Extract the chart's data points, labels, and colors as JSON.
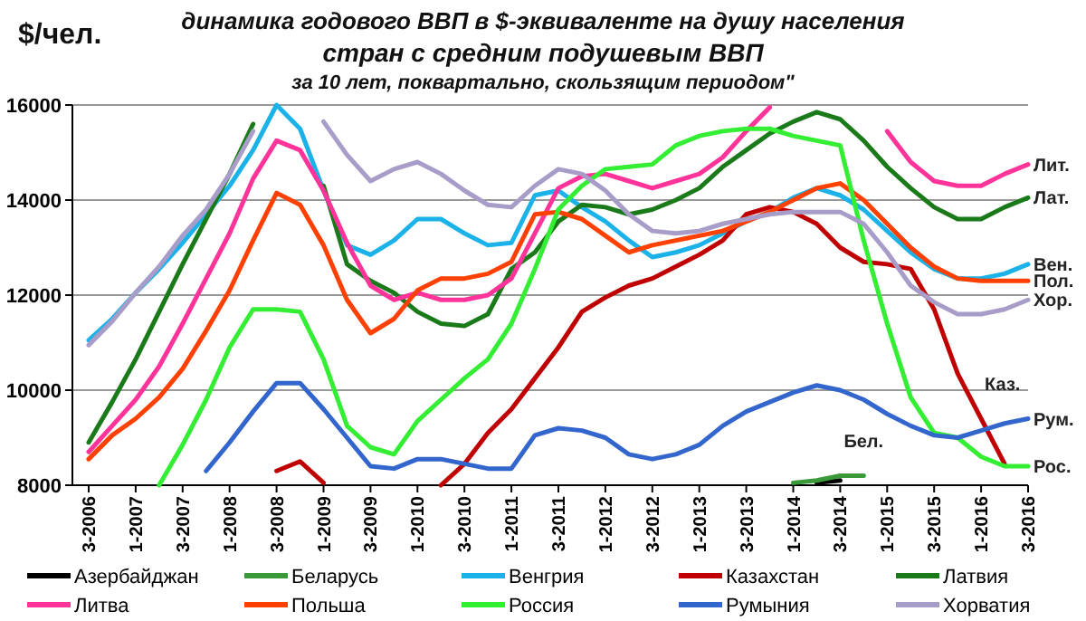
{
  "chart_data": {
    "type": "line",
    "title": "динамика годового ВВП в $-эквиваленте на душу населения\nстран с средним подушевым ВВП",
    "subtitle": "за 10 лет, поквартально, скользящим периодом\"",
    "ylabel": "$/чел.",
    "categories": [
      "3-2006",
      null,
      "1-2007",
      null,
      "3-2007",
      null,
      "1-2008",
      null,
      "3-2008",
      null,
      "1-2009",
      null,
      "3-2009",
      null,
      "1-2010",
      null,
      "3-2010",
      null,
      "1-2011",
      null,
      "3-2011",
      null,
      "1-2012",
      null,
      "3-2012",
      null,
      "1-2013",
      null,
      "3-2013",
      null,
      "1-2014",
      null,
      "3-2014",
      null,
      "1-2015",
      null,
      "3-2015",
      null,
      "1-2016",
      null,
      "3-2016"
    ],
    "ylim": [
      8000,
      16000
    ],
    "yticks": [
      8000,
      10000,
      12000,
      14000,
      16000
    ],
    "grid": "y",
    "legend": "bottom",
    "marker": "none",
    "line_style": "solid",
    "series": [
      {
        "name": "Азербайджан",
        "color": "#000000",
        "values": [
          null,
          null,
          null,
          null,
          null,
          null,
          null,
          null,
          null,
          null,
          null,
          null,
          null,
          null,
          null,
          null,
          null,
          null,
          null,
          null,
          null,
          null,
          null,
          null,
          null,
          null,
          null,
          null,
          null,
          null,
          null,
          8050,
          8100,
          null,
          null,
          null,
          null,
          null,
          null,
          null,
          null
        ]
      },
      {
        "name": "Беларусь",
        "color": "#3a9a3a",
        "values": [
          null,
          null,
          null,
          null,
          null,
          null,
          null,
          null,
          null,
          null,
          null,
          null,
          null,
          null,
          null,
          null,
          null,
          null,
          null,
          null,
          null,
          null,
          null,
          null,
          null,
          null,
          null,
          null,
          null,
          null,
          8050,
          8100,
          8200,
          8200,
          null,
          null,
          null,
          null,
          null,
          null,
          null
        ]
      },
      {
        "name": "Венгрия",
        "color": "#1ab2e8",
        "values": [
          11050,
          11500,
          12050,
          12550,
          13100,
          13700,
          14300,
          15050,
          16000,
          15500,
          14200,
          13050,
          12850,
          13150,
          13600,
          13600,
          13300,
          13050,
          13100,
          14100,
          14200,
          13850,
          13550,
          13150,
          12800,
          12900,
          13050,
          13300,
          13550,
          13750,
          14050,
          14250,
          14100,
          13800,
          13350,
          12900,
          12550,
          12350,
          12350,
          12450,
          12650
        ]
      },
      {
        "name": "Казахстан",
        "color": "#c00000",
        "values": [
          null,
          null,
          null,
          null,
          null,
          null,
          null,
          null,
          8300,
          8500,
          8050,
          null,
          null,
          null,
          null,
          8000,
          8450,
          9100,
          9600,
          10250,
          10900,
          11650,
          11950,
          12200,
          12350,
          12600,
          12850,
          13150,
          13700,
          13850,
          13750,
          13500,
          13000,
          12700,
          12650,
          12550,
          11700,
          10350,
          9400,
          8450,
          null
        ]
      },
      {
        "name": "Латвия",
        "color": "#1a7a1a",
        "values": [
          8900,
          9750,
          10650,
          11650,
          12650,
          13600,
          14550,
          15600,
          null,
          null,
          14300,
          12650,
          12300,
          12050,
          11650,
          11400,
          11350,
          11600,
          12550,
          12900,
          13550,
          13900,
          13850,
          13700,
          13800,
          14000,
          14250,
          14700,
          15050,
          15400,
          15650,
          15850,
          15700,
          15250,
          14700,
          14250,
          13850,
          13600,
          13600,
          13850,
          14050
        ]
      },
      {
        "name": "Литва",
        "color": "#ff3399",
        "values": [
          8700,
          9250,
          9800,
          10500,
          11400,
          12350,
          13300,
          14450,
          15250,
          15050,
          14200,
          13100,
          12200,
          11900,
          12050,
          11900,
          11900,
          12000,
          12350,
          13300,
          14250,
          14500,
          14550,
          14400,
          14250,
          14400,
          14550,
          14900,
          15450,
          15950,
          null,
          null,
          null,
          null,
          15450,
          14800,
          14400,
          14300,
          14300,
          14550,
          14750
        ]
      },
      {
        "name": "Польша",
        "color": "#ff4000",
        "values": [
          8550,
          9050,
          9400,
          9850,
          10450,
          11250,
          12100,
          13150,
          14150,
          13900,
          13050,
          11900,
          11200,
          11500,
          12100,
          12350,
          12350,
          12450,
          12700,
          13700,
          13750,
          13600,
          13250,
          12900,
          13050,
          13150,
          13250,
          13350,
          13550,
          13750,
          14000,
          14250,
          14350,
          14000,
          13500,
          13000,
          12600,
          12350,
          12300,
          12300,
          12300
        ]
      },
      {
        "name": "Россия",
        "color": "#33ee33",
        "values": [
          null,
          null,
          null,
          8000,
          8850,
          9800,
          10900,
          11700,
          11700,
          11650,
          10650,
          9250,
          8800,
          8650,
          9350,
          9800,
          10250,
          10650,
          11400,
          12550,
          13800,
          14300,
          14650,
          14700,
          14750,
          15150,
          15350,
          15450,
          15500,
          15500,
          15350,
          15250,
          15150,
          13150,
          11400,
          9850,
          9100,
          9000,
          8600,
          8400,
          8400
        ]
      },
      {
        "name": "Румыния",
        "color": "#3366cc",
        "values": [
          null,
          null,
          null,
          null,
          null,
          8300,
          8900,
          9550,
          10150,
          10150,
          9600,
          9000,
          8400,
          8350,
          8550,
          8550,
          8450,
          8350,
          8350,
          9050,
          9200,
          9150,
          9000,
          8650,
          8550,
          8650,
          8850,
          9250,
          9550,
          9750,
          9950,
          10100,
          10000,
          9800,
          9500,
          9250,
          9050,
          9000,
          9150,
          9300,
          9400
        ]
      },
      {
        "name": "Хорватия",
        "color": "#a89cc8",
        "values": [
          10950,
          11450,
          12050,
          12600,
          13250,
          13800,
          14550,
          15450,
          null,
          null,
          15650,
          14950,
          14400,
          14650,
          14800,
          14550,
          14200,
          13900,
          13850,
          14300,
          14650,
          14550,
          14200,
          13700,
          13350,
          13300,
          13350,
          13500,
          13600,
          13700,
          13750,
          13750,
          13750,
          13500,
          12900,
          12200,
          11850,
          11600,
          11600,
          11700,
          11900
        ]
      }
    ],
    "annotations": [
      {
        "text": "Лит.",
        "x": "3-2016",
        "y": 14750
      },
      {
        "text": "Лат.",
        "x": "3-2016",
        "y": 14050
      },
      {
        "text": "Вен.",
        "x": "3-2016",
        "y": 12650
      },
      {
        "text": "Пол.",
        "x": "3-2016",
        "y": 12300
      },
      {
        "text": "Хор.",
        "x": "3-2016",
        "y": 11900
      },
      {
        "text": "Рум.",
        "x": "3-2016",
        "y": 9400
      },
      {
        "text": "Рос.",
        "x": "3-2016",
        "y": 8400
      },
      {
        "text": "Каз.",
        "x": "1-2016",
        "y": 9400
      },
      {
        "text": "Бел.",
        "x": "3-2014",
        "y": 8200
      }
    ]
  }
}
